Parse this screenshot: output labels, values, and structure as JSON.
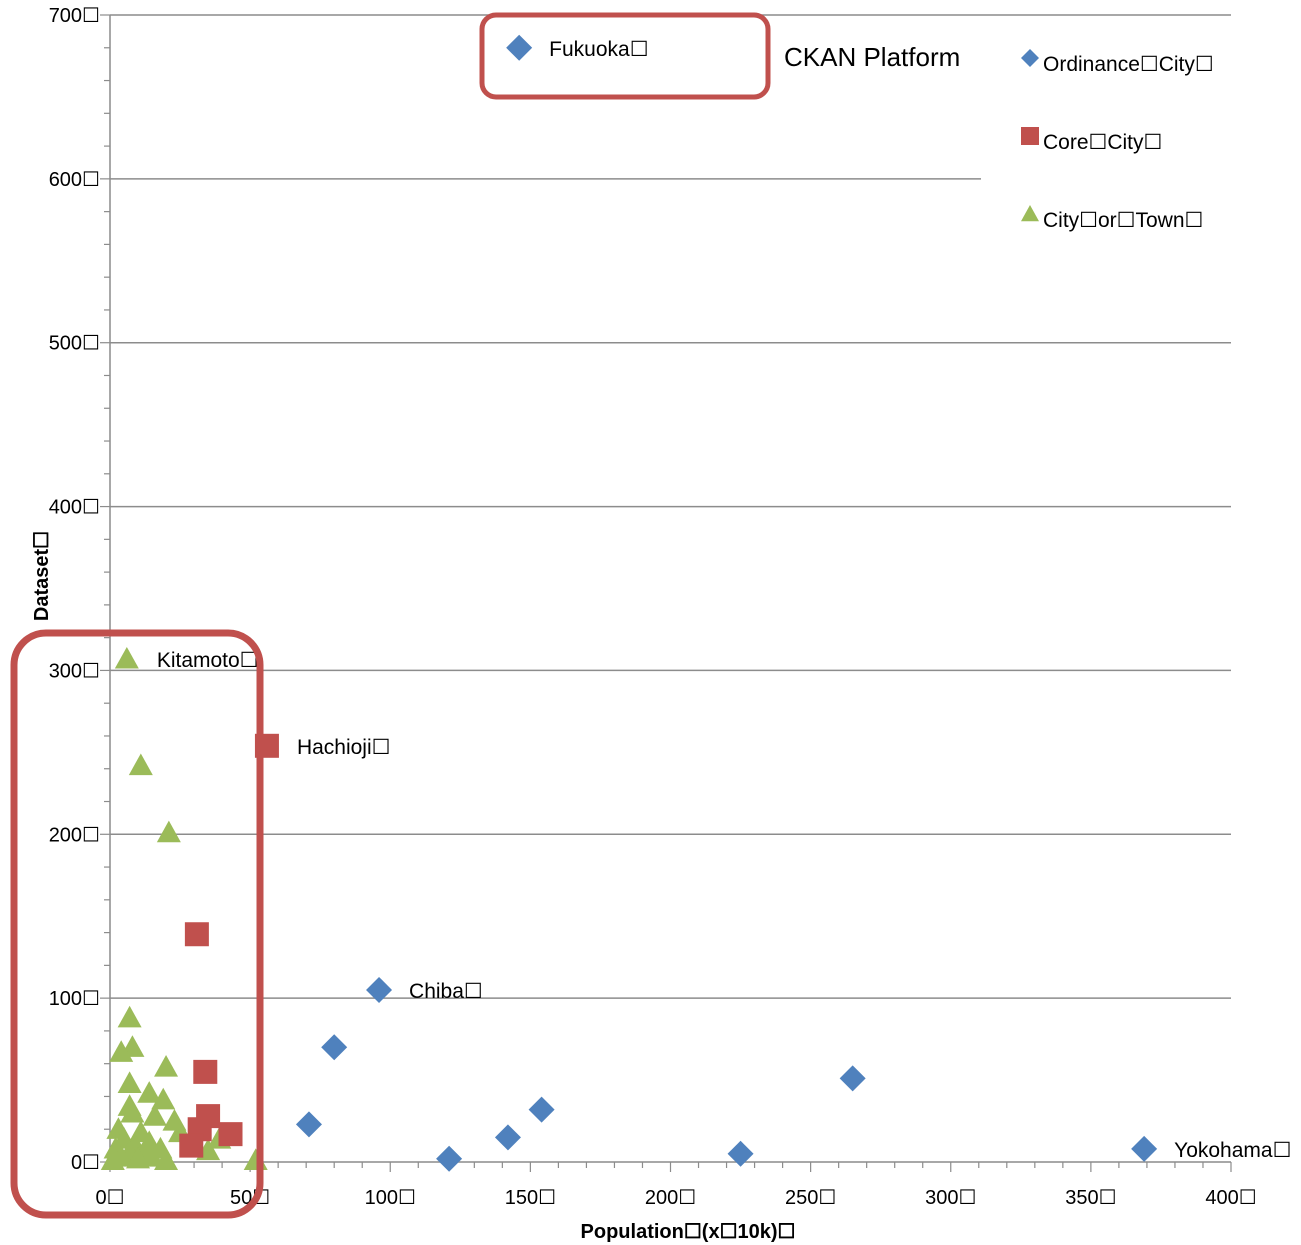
{
  "chart_data": {
    "type": "scatter",
    "annotation": "CKAN Platform",
    "xlabel": "Population☐(x☐10k)☐",
    "ylabel": "Dataset☐",
    "xlim": [
      0,
      400
    ],
    "ylim": [
      0,
      700
    ],
    "x_ticks": [
      {
        "value": 0,
        "label": "0☐"
      },
      {
        "value": 50,
        "label": "50☐"
      },
      {
        "value": 100,
        "label": "100☐"
      },
      {
        "value": 150,
        "label": "150☐"
      },
      {
        "value": 200,
        "label": "200☐"
      },
      {
        "value": 250,
        "label": "250☐"
      },
      {
        "value": 300,
        "label": "300☐"
      },
      {
        "value": 350,
        "label": "350☐"
      },
      {
        "value": 400,
        "label": "400☐"
      }
    ],
    "y_ticks": [
      {
        "value": 0,
        "label": "0☐"
      },
      {
        "value": 100,
        "label": "100☐"
      },
      {
        "value": 200,
        "label": "200☐"
      },
      {
        "value": 300,
        "label": "300☐"
      },
      {
        "value": 400,
        "label": "400☐"
      },
      {
        "value": 500,
        "label": "500☐"
      },
      {
        "value": 600,
        "label": "600☐"
      },
      {
        "value": 700,
        "label": "700☐"
      }
    ],
    "grid": "horizontal",
    "legend_position": "top-right",
    "series": [
      {
        "name": "Ordinance☐City☐",
        "marker": "diamond",
        "color": "#4F81BD",
        "points": [
          {
            "x": 146,
            "y": 680,
            "label": "Fukuoka☐"
          },
          {
            "x": 96,
            "y": 105,
            "label": "Chiba☐"
          },
          {
            "x": 80,
            "y": 70
          },
          {
            "x": 71,
            "y": 23
          },
          {
            "x": 121,
            "y": 2
          },
          {
            "x": 142,
            "y": 15
          },
          {
            "x": 154,
            "y": 32
          },
          {
            "x": 225,
            "y": 5
          },
          {
            "x": 265,
            "y": 51
          },
          {
            "x": 369,
            "y": 8,
            "label": "Yokohama☐"
          }
        ]
      },
      {
        "name": "Core☐City☐",
        "marker": "square",
        "color": "#C0504D",
        "points": [
          {
            "x": 56,
            "y": 254,
            "label": "Hachioji☐"
          },
          {
            "x": 31,
            "y": 139
          },
          {
            "x": 34,
            "y": 55
          },
          {
            "x": 35,
            "y": 28
          },
          {
            "x": 32,
            "y": 20
          },
          {
            "x": 43,
            "y": 17
          },
          {
            "x": 29,
            "y": 10
          }
        ]
      },
      {
        "name": "City☐or☐Town☐",
        "marker": "triangle",
        "color": "#9BBB59",
        "points": [
          {
            "x": 6,
            "y": 307,
            "label": "Kitamoto☐"
          },
          {
            "x": 11,
            "y": 242
          },
          {
            "x": 21,
            "y": 201
          },
          {
            "x": 7,
            "y": 88
          },
          {
            "x": 8,
            "y": 70
          },
          {
            "x": 4,
            "y": 67
          },
          {
            "x": 20,
            "y": 58
          },
          {
            "x": 7,
            "y": 48
          },
          {
            "x": 14,
            "y": 42
          },
          {
            "x": 19,
            "y": 38
          },
          {
            "x": 7,
            "y": 34
          },
          {
            "x": 8,
            "y": 30
          },
          {
            "x": 16,
            "y": 28
          },
          {
            "x": 23,
            "y": 25
          },
          {
            "x": 3,
            "y": 20
          },
          {
            "x": 11,
            "y": 18
          },
          {
            "x": 5,
            "y": 14
          },
          {
            "x": 14,
            "y": 12
          },
          {
            "x": 9,
            "y": 10
          },
          {
            "x": 2,
            "y": 8
          },
          {
            "x": 18,
            "y": 8
          },
          {
            "x": 7,
            "y": 6
          },
          {
            "x": 12,
            "y": 5
          },
          {
            "x": 39,
            "y": 14
          },
          {
            "x": 35,
            "y": 7
          },
          {
            "x": 4,
            "y": 3
          },
          {
            "x": 10,
            "y": 2
          },
          {
            "x": 15,
            "y": 3
          },
          {
            "x": 20,
            "y": 1
          },
          {
            "x": 52,
            "y": 1
          },
          {
            "x": 1,
            "y": 1
          },
          {
            "x": 25,
            "y": 18
          }
        ]
      }
    ]
  }
}
